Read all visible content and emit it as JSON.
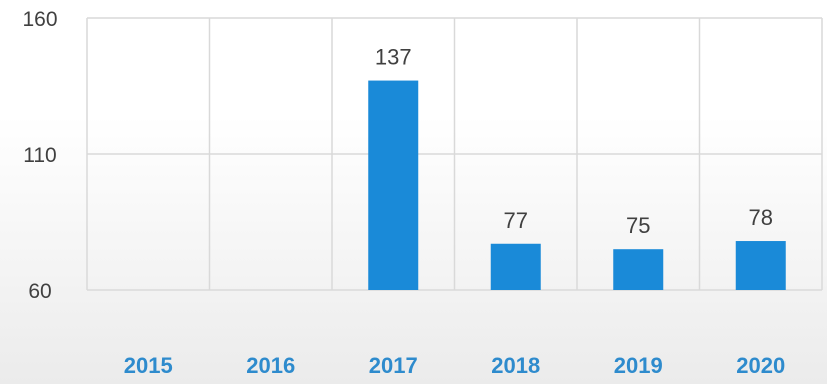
{
  "chart_data": {
    "type": "bar",
    "categories": [
      "2015",
      "2016",
      "2017",
      "2018",
      "2019",
      "2020"
    ],
    "values": [
      null,
      null,
      137,
      77,
      75,
      78
    ],
    "data_labels": [
      "",
      "",
      "137",
      "77",
      "75",
      "78"
    ],
    "yticks": [
      "60",
      "110",
      "160"
    ],
    "ylim": [
      60,
      160
    ],
    "grid": true,
    "legend": "none",
    "colors": {
      "bar": "#1a8ad8",
      "grid": "#d9d9d9",
      "xtick": "#2e8bcd",
      "text": "#404040"
    }
  }
}
